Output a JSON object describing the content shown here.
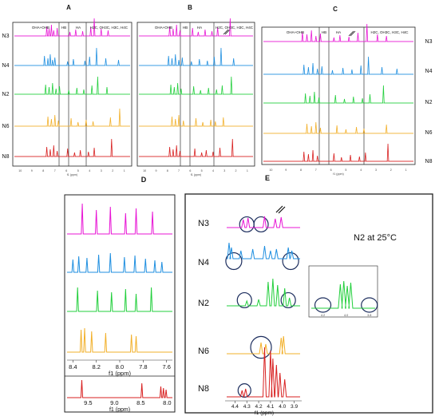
{
  "figure": {
    "panel_letters": [
      "A",
      "B",
      "C",
      "D",
      "E"
    ],
    "region_labels": [
      "OHA+OHB",
      "HB",
      "HA",
      "H2C, OH3C, H3C, H4C"
    ],
    "sample_labels": [
      "N3",
      "N4",
      "N2",
      "N6",
      "N8"
    ],
    "e_labels": [
      "N3",
      "N4",
      "N2",
      "N6",
      "N8"
    ],
    "inset_title": "N2 at 25°C",
    "colors": {
      "N3": "#e815d5",
      "N4": "#1f8fe0",
      "N2": "#22cf3c",
      "N6": "#f2b02a",
      "N8": "#d82020",
      "circle": "#1d2e5e"
    }
  },
  "chart_data": [
    {
      "type": "line",
      "panel": "A",
      "xlabel": "f1 (ppm)",
      "x_ticks": [
        "10",
        "9",
        "8",
        "7",
        "6",
        "5",
        "4",
        "3",
        "2",
        "1"
      ],
      "series": [
        {
          "name": "N3",
          "peaks_ppm": [
            7.7,
            7.5,
            7.3,
            7.1,
            6.8,
            5.7,
            5.2,
            4.6,
            3.9,
            3.6,
            3.0,
            2.4
          ]
        },
        {
          "name": "N4",
          "peaks_ppm": [
            7.9,
            7.6,
            7.4,
            7.2,
            7.0,
            5.9,
            5.4,
            4.4,
            4.0,
            3.4,
            2.6,
            1.5
          ]
        },
        {
          "name": "N2",
          "peaks_ppm": [
            7.8,
            7.5,
            7.2,
            6.9,
            6.6,
            5.8,
            5.1,
            4.5,
            3.8,
            3.3,
            2.5
          ]
        },
        {
          "name": "N6",
          "peaks_ppm": [
            7.6,
            7.3,
            7.0,
            6.7,
            5.6,
            5.0,
            4.3,
            3.7,
            2.2,
            1.4
          ]
        },
        {
          "name": "N8",
          "peaks_ppm": [
            7.7,
            7.4,
            7.1,
            6.8,
            5.9,
            5.3,
            4.8,
            4.1,
            3.6,
            2.1
          ]
        }
      ]
    },
    {
      "type": "line",
      "panel": "B",
      "xlabel": "f1 (ppm)",
      "x_ticks": [
        "10",
        "9",
        "8",
        "7",
        "6",
        "5",
        "4",
        "3",
        "2",
        "1"
      ],
      "series": [
        {
          "name": "N3",
          "peaks_ppm": [
            7.8,
            7.5,
            7.2,
            6.9,
            5.8,
            5.3,
            4.7,
            4.1,
            3.6,
            2.5
          ]
        },
        {
          "name": "N4",
          "peaks_ppm": [
            7.9,
            7.6,
            7.3,
            7.0,
            6.7,
            5.9,
            5.2,
            4.5,
            3.9,
            3.3,
            2.2
          ]
        },
        {
          "name": "N2",
          "peaks_ppm": [
            7.7,
            7.4,
            7.1,
            6.8,
            5.7,
            5.1,
            4.4,
            3.7,
            3.2,
            2.4
          ]
        },
        {
          "name": "N6",
          "peaks_ppm": [
            7.6,
            7.3,
            7.0,
            6.6,
            5.5,
            4.9,
            4.2,
            3.8,
            3.1
          ]
        },
        {
          "name": "N8",
          "peaks_ppm": [
            7.8,
            7.5,
            7.2,
            6.9,
            5.6,
            5.0,
            4.6,
            4.0,
            3.4,
            2.3
          ]
        }
      ]
    },
    {
      "type": "line",
      "panel": "C",
      "xlabel": "f1 (ppm)",
      "x_ticks": [
        "10",
        "9",
        "8",
        "7",
        "6",
        "5",
        "4",
        "3",
        "2",
        "1"
      ],
      "series": [
        {
          "name": "N3",
          "peaks_ppm": [
            7.9,
            7.6,
            7.3,
            7.0,
            6.7,
            5.8,
            5.4,
            4.8,
            4.2,
            3.6,
            2.9,
            2.3
          ]
        },
        {
          "name": "N4",
          "peaks_ppm": [
            7.8,
            7.5,
            7.2,
            6.9,
            6.6,
            5.9,
            5.2,
            4.6,
            4.0,
            3.5,
            2.6,
            1.6
          ]
        },
        {
          "name": "N2",
          "peaks_ppm": [
            7.7,
            7.4,
            7.1,
            6.8,
            5.7,
            5.1,
            4.5,
            3.9,
            3.4,
            2.5
          ]
        },
        {
          "name": "N6",
          "peaks_ppm": [
            7.6,
            7.3,
            7.0,
            6.7,
            5.6,
            5.0,
            4.3,
            3.8,
            2.3
          ]
        },
        {
          "name": "N8",
          "peaks_ppm": [
            7.8,
            7.5,
            7.2,
            6.9,
            5.8,
            5.3,
            4.7,
            4.1,
            3.7,
            2.2
          ]
        }
      ]
    },
    {
      "type": "line",
      "panel": "D",
      "xlabel": "f1 (ppm)",
      "xlim": [
        8.45,
        7.55
      ],
      "x_ticks": [
        "8.4",
        "8.2",
        "8.0",
        "7.8",
        "7.6"
      ],
      "series": [
        {
          "name": "N3",
          "peaks_ppm": [
            8.32,
            8.2,
            8.08,
            7.95,
            7.86,
            7.72
          ]
        },
        {
          "name": "N4",
          "peaks_ppm": [
            8.4,
            8.35,
            8.28,
            8.18,
            8.08,
            7.96,
            7.87,
            7.78,
            7.7,
            7.64
          ]
        },
        {
          "name": "N2",
          "peaks_ppm": [
            8.36,
            8.19,
            8.07,
            7.95,
            7.86,
            7.73
          ]
        },
        {
          "name": "N6",
          "peaks_ppm": [
            8.33,
            8.3,
            8.24,
            8.12,
            7.9,
            7.86
          ]
        }
      ],
      "bottom_strip": {
        "name": "N8",
        "xlim": [
          9.9,
          7.9
        ],
        "x_ticks": [
          "9.5",
          "9.0",
          "8.5",
          "8.0"
        ],
        "peaks_ppm": [
          9.62,
          8.48,
          8.12,
          8.07,
          8.02
        ]
      }
    },
    {
      "type": "line",
      "panel": "E",
      "xlabel": "f1 (ppm)",
      "xlim": [
        4.47,
        3.85
      ],
      "x_ticks": [
        "4.4",
        "4.3",
        "4.2",
        "4.1",
        "4.0",
        "3.9"
      ],
      "series": [
        {
          "name": "N3",
          "peaks_ppm": [
            4.33,
            4.29,
            4.15,
            4.06,
            4.01
          ]
        },
        {
          "name": "N4",
          "peaks_ppm": [
            4.45,
            4.43,
            4.35,
            4.25,
            4.15,
            4.1,
            4.05,
            3.95,
            3.92
          ]
        },
        {
          "name": "N2",
          "peaks_ppm": [
            4.3,
            4.2,
            4.12,
            4.08,
            4.04,
            3.98,
            3.94
          ]
        },
        {
          "name": "N6",
          "peaks_ppm": [
            4.18,
            4.14,
            4.01,
            3.99
          ]
        },
        {
          "name": "N8",
          "peaks_ppm": [
            4.34,
            4.31,
            4.15,
            4.1,
            4.08,
            4.05,
            4.02,
            3.98
          ]
        }
      ],
      "circled_ppm": {
        "N3": [
          4.3,
          4.18
        ],
        "N4": [
          4.41,
          3.93
        ],
        "N2": [
          4.32,
          3.95
        ],
        "N6": [
          4.18
        ],
        "N8": [
          4.32
        ]
      },
      "inset": {
        "name": "N2",
        "x_ticks": [
          "4.2",
          "4.0",
          "3.8"
        ],
        "peaks_ppm": [
          4.05,
          4.02,
          3.99,
          3.96
        ]
      }
    }
  ]
}
